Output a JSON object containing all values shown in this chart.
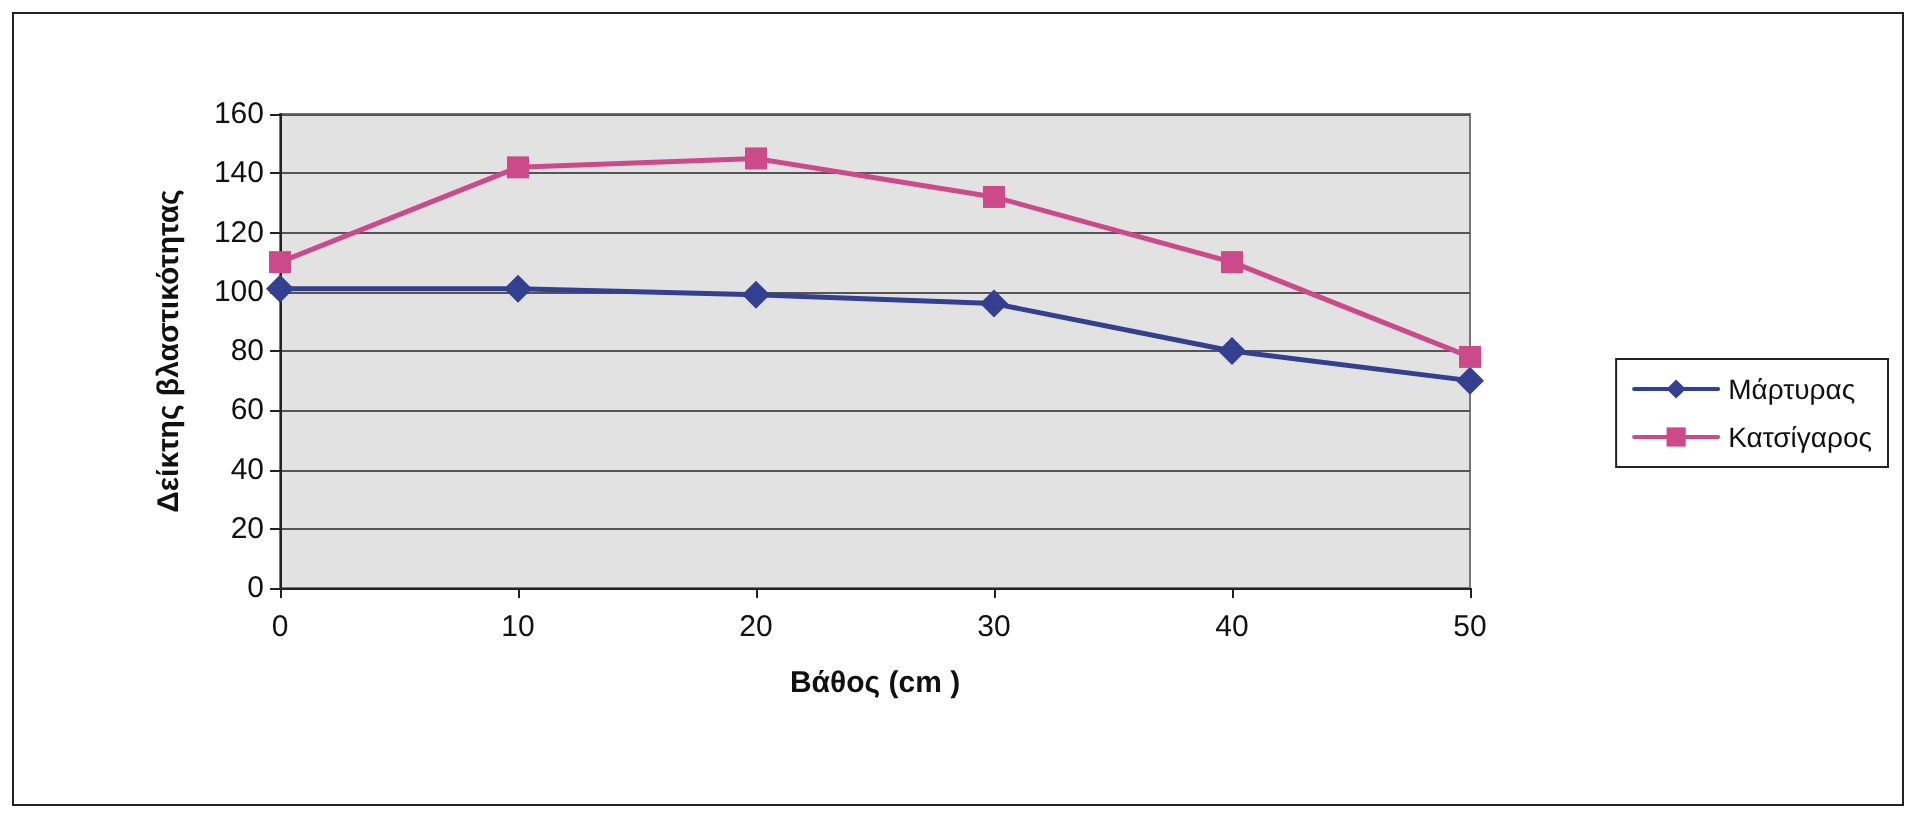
{
  "chart_data": {
    "type": "line",
    "xlabel": "Βάθος (cm )",
    "ylabel": "Δείκτης βλαστικότητας",
    "x": [
      0,
      10,
      20,
      30,
      40,
      50
    ],
    "series": [
      {
        "name": "Μάρτυρας",
        "color": "#333f8f",
        "marker": "diamond",
        "values": [
          101,
          101,
          99,
          96,
          80,
          70
        ]
      },
      {
        "name": "Κατσίγαρος",
        "color": "#cc4a8a",
        "marker": "square",
        "values": [
          110,
          142,
          145,
          132,
          110,
          78
        ]
      }
    ],
    "xlim": [
      0,
      50
    ],
    "xticks": [
      0,
      10,
      20,
      30,
      40,
      50
    ],
    "ylim": [
      0,
      160
    ],
    "yticks": [
      0,
      20,
      40,
      60,
      80,
      100,
      120,
      140,
      160
    ],
    "grid": "y",
    "legend": "right",
    "line_style": "solid"
  }
}
